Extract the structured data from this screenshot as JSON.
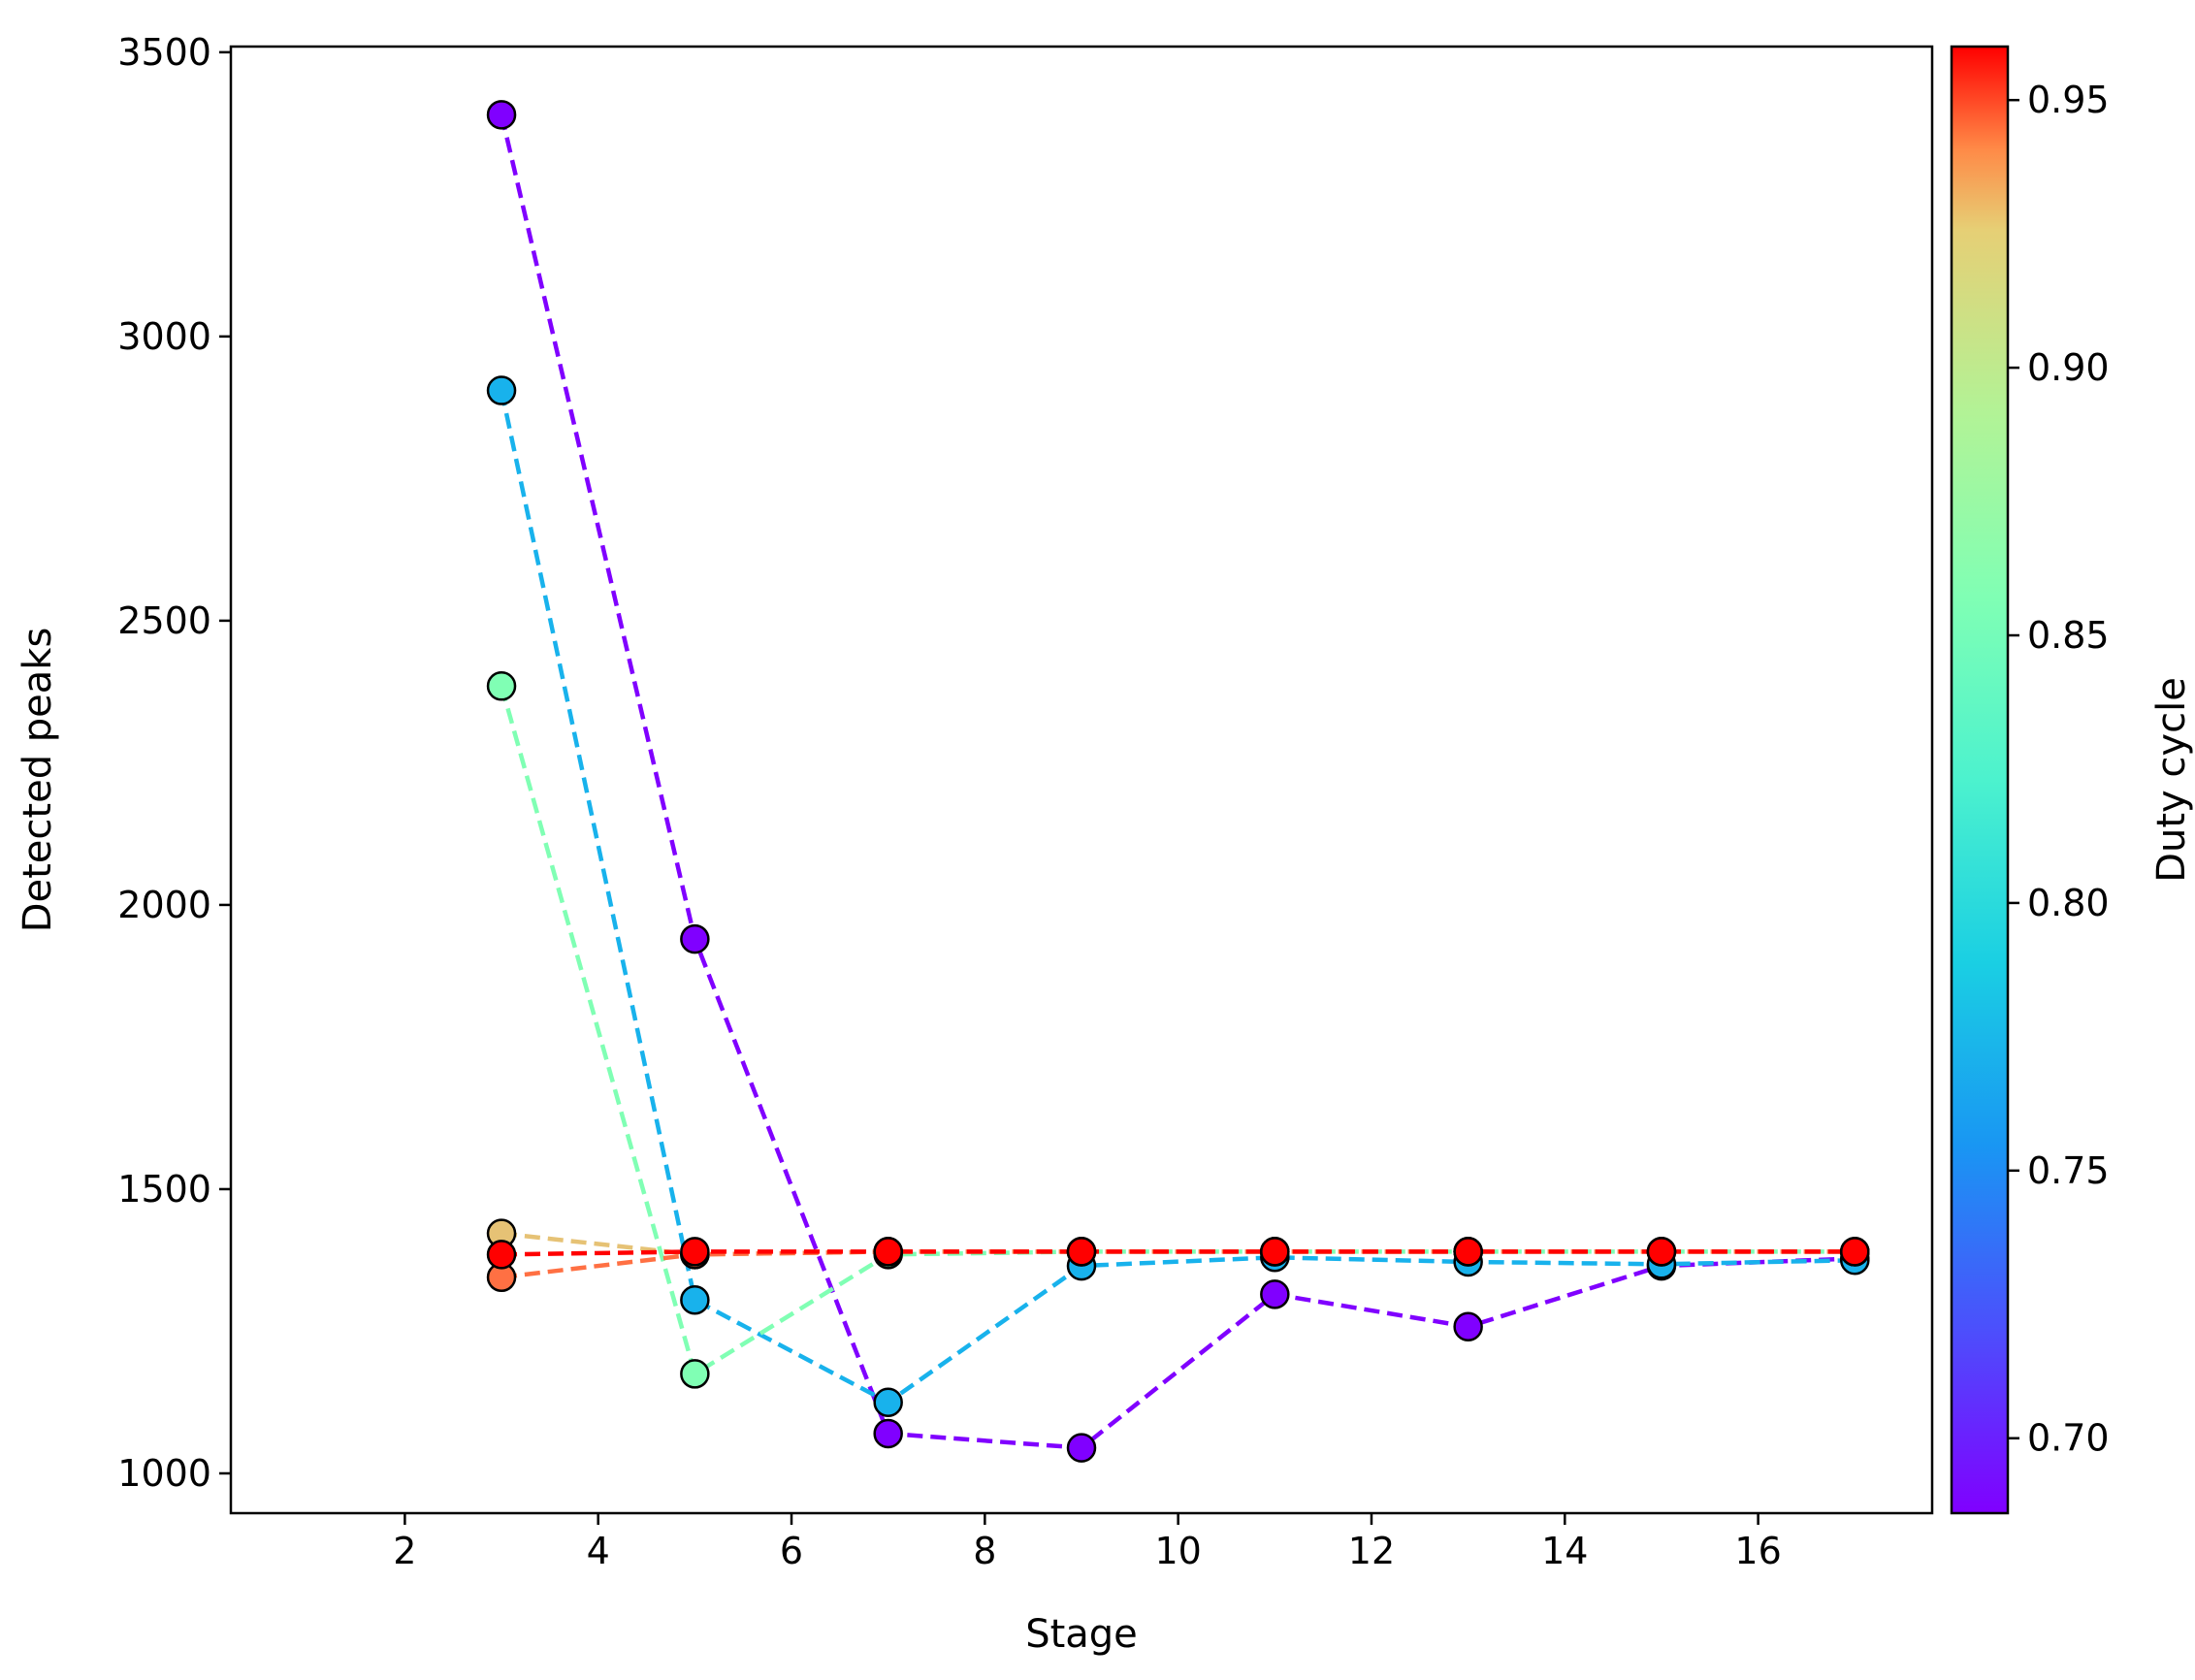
{
  "chart_data": {
    "type": "line",
    "title": "",
    "xlabel": "Stage",
    "ylabel": "Detected peaks",
    "xlim": [
      0.2,
      17.8
    ],
    "ylim": [
      930,
      3510
    ],
    "xticks": [
      2,
      4,
      6,
      8,
      10,
      12,
      14,
      16
    ],
    "yticks": [
      1000,
      1500,
      2000,
      2500,
      3000,
      3500
    ],
    "grid": false,
    "line_style": "dashed",
    "marker": "circle",
    "x": [
      3,
      5,
      7,
      9,
      11,
      13,
      15,
      17
    ],
    "colorbar": {
      "label": "Duty cycle",
      "colormap": "rainbow",
      "range": [
        0.686,
        0.96
      ],
      "ticks": [
        0.7,
        0.75,
        0.8,
        0.85,
        0.9,
        0.95
      ],
      "tick_labels": [
        "0.70",
        "0.75",
        "0.80",
        "0.85",
        "0.90",
        "0.95"
      ]
    },
    "series": [
      {
        "duty_cycle": 0.69,
        "color": "#8000ff",
        "values": [
          3390,
          1940,
          1070,
          1045,
          1315,
          1258,
          1365,
          1378
        ]
      },
      {
        "duty_cycle": 0.75,
        "color": "#18b2ec",
        "values": [
          2905,
          1305,
          1125,
          1365,
          1380,
          1372,
          1368,
          1375
        ]
      },
      {
        "duty_cycle": 0.82,
        "color": "#80ffb4",
        "values": [
          2385,
          1175,
          1385,
          1390,
          1390,
          1390,
          1390,
          1390
        ]
      },
      {
        "duty_cycle": 0.88,
        "color": "#e6c275",
        "values": [
          1422,
          1385,
          1390,
          1390,
          1390,
          1390,
          1390,
          1390
        ]
      },
      {
        "duty_cycle": 0.91,
        "color": "#ff7043",
        "values": [
          1345,
          1385,
          1390,
          1390,
          1390,
          1390,
          1390,
          1390
        ]
      },
      {
        "duty_cycle": 0.96,
        "color": "#ff0000",
        "values": [
          1385,
          1390,
          1390,
          1390,
          1390,
          1390,
          1390,
          1390
        ]
      }
    ]
  }
}
